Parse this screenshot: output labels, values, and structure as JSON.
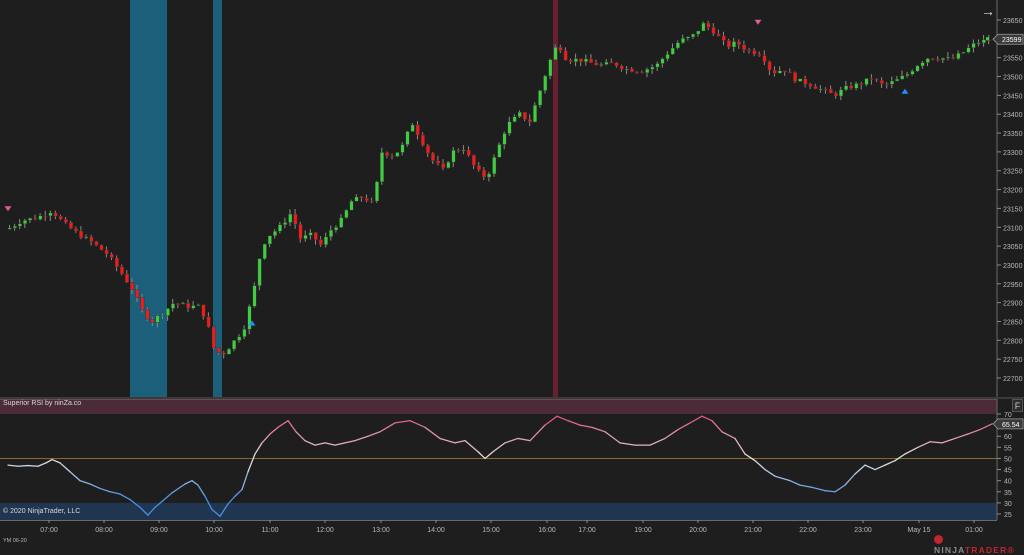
{
  "chart_data": [
    {
      "type": "candlestick",
      "title": "YM 06-20",
      "instrument": "YM 06-20",
      "ylim": [
        22660,
        23680
      ],
      "yticks": [
        23650,
        23600,
        23550,
        23500,
        23450,
        23400,
        23350,
        23300,
        23250,
        23200,
        23150,
        23100,
        23050,
        23000,
        22950,
        22900,
        22850,
        22800,
        22750,
        22700
      ],
      "last_price": 23599,
      "xticks": [
        "07:00",
        "08:00",
        "09:00",
        "10:00",
        "11:00",
        "12:00",
        "13:00",
        "14:00",
        "15:00",
        "16:00",
        "17:00",
        "18:00",
        "19:00",
        "20:00",
        "21:00",
        "22:00",
        "23:00",
        "May 15",
        "01:00"
      ],
      "close_path": [
        [
          6,
          23095
        ],
        [
          20,
          23118
        ],
        [
          35,
          23125
        ],
        [
          50,
          23145
        ],
        [
          62,
          23110
        ],
        [
          75,
          23085
        ],
        [
          90,
          23060
        ],
        [
          105,
          23030
        ],
        [
          118,
          22985
        ],
        [
          130,
          22940
        ],
        [
          140,
          22880
        ],
        [
          150,
          22850
        ],
        [
          160,
          22870
        ],
        [
          172,
          22900
        ],
        [
          185,
          22890
        ],
        [
          198,
          22890
        ],
        [
          205,
          22850
        ],
        [
          212,
          22780
        ],
        [
          220,
          22760
        ],
        [
          230,
          22790
        ],
        [
          242,
          22830
        ],
        [
          252,
          22930
        ],
        [
          260,
          23050
        ],
        [
          268,
          23080
        ],
        [
          278,
          23100
        ],
        [
          290,
          23140
        ],
        [
          298,
          23070
        ],
        [
          310,
          23080
        ],
        [
          320,
          23050
        ],
        [
          328,
          23090
        ],
        [
          340,
          23120
        ],
        [
          350,
          23170
        ],
        [
          362,
          23180
        ],
        [
          372,
          23160
        ],
        [
          380,
          23300
        ],
        [
          392,
          23290
        ],
        [
          402,
          23320
        ],
        [
          410,
          23380
        ],
        [
          420,
          23330
        ],
        [
          430,
          23280
        ],
        [
          442,
          23250
        ],
        [
          450,
          23300
        ],
        [
          462,
          23310
        ],
        [
          475,
          23250
        ],
        [
          485,
          23230
        ],
        [
          495,
          23300
        ],
        [
          505,
          23370
        ],
        [
          518,
          23400
        ],
        [
          528,
          23380
        ],
        [
          538,
          23460
        ],
        [
          548,
          23540
        ],
        [
          556,
          23590
        ],
        [
          565,
          23545
        ],
        [
          578,
          23545
        ],
        [
          590,
          23535
        ],
        [
          600,
          23530
        ],
        [
          612,
          23535
        ],
        [
          625,
          23520
        ],
        [
          640,
          23515
        ],
        [
          655,
          23530
        ],
        [
          665,
          23560
        ],
        [
          678,
          23595
        ],
        [
          690,
          23605
        ],
        [
          702,
          23640
        ],
        [
          712,
          23620
        ],
        [
          725,
          23580
        ],
        [
          735,
          23590
        ],
        [
          745,
          23570
        ],
        [
          760,
          23560
        ],
        [
          770,
          23510
        ],
        [
          782,
          23520
        ],
        [
          795,
          23490
        ],
        [
          808,
          23480
        ],
        [
          820,
          23465
        ],
        [
          832,
          23450
        ],
        [
          845,
          23470
        ],
        [
          858,
          23480
        ],
        [
          870,
          23495
        ],
        [
          882,
          23475
        ],
        [
          895,
          23490
        ],
        [
          905,
          23505
        ],
        [
          915,
          23530
        ],
        [
          925,
          23550
        ],
        [
          938,
          23550
        ],
        [
          950,
          23545
        ],
        [
          962,
          23565
        ],
        [
          975,
          23590
        ],
        [
          990,
          23599
        ]
      ],
      "markers": [
        {
          "type": "down-arrow",
          "color": "#e05aa0",
          "x": 8,
          "price": 23145
        },
        {
          "type": "up-arrow",
          "color": "#1e90ff",
          "x": 252,
          "price": 22850
        },
        {
          "type": "down-arrow",
          "color": "#e05aa0",
          "x": 758,
          "price": 23640
        },
        {
          "type": "up-arrow",
          "color": "#1e90ff",
          "x": 905,
          "price": 23465
        }
      ],
      "highlight_bands": [
        {
          "x0": 130,
          "x1": 167,
          "color": "#1c5f7a"
        },
        {
          "x0": 213,
          "x1": 222,
          "color": "#1c5f7a"
        },
        {
          "x0": 553,
          "x1": 558,
          "color": "#6b1e32"
        }
      ],
      "up_color": "#3ecf3e",
      "down_color": "#ee1c1c"
    },
    {
      "type": "line",
      "title": "Superior RSI by ninZa.co",
      "ylim": [
        22,
        72
      ],
      "yticks": [
        70,
        65,
        60,
        55,
        50,
        45,
        40,
        35,
        30,
        25
      ],
      "last_value": "65.54",
      "overbought_zone": [
        70,
        72
      ],
      "oversold_zone": [
        22,
        30
      ],
      "midline": 50,
      "series": [
        [
          8,
          47
        ],
        [
          18,
          46.5
        ],
        [
          28,
          46.8
        ],
        [
          38,
          46.5
        ],
        [
          46,
          48
        ],
        [
          52,
          49.5
        ],
        [
          60,
          48
        ],
        [
          70,
          44
        ],
        [
          80,
          40
        ],
        [
          90,
          38.5
        ],
        [
          100,
          36.5
        ],
        [
          110,
          35
        ],
        [
          120,
          34
        ],
        [
          130,
          31.5
        ],
        [
          140,
          28
        ],
        [
          148,
          24.5
        ],
        [
          155,
          28
        ],
        [
          163,
          31
        ],
        [
          172,
          34.5
        ],
        [
          185,
          38.5
        ],
        [
          192,
          40
        ],
        [
          198,
          38
        ],
        [
          205,
          33
        ],
        [
          212,
          27
        ],
        [
          220,
          24
        ],
        [
          228,
          29.5
        ],
        [
          235,
          33
        ],
        [
          242,
          36
        ],
        [
          248,
          44
        ],
        [
          255,
          52
        ],
        [
          262,
          57
        ],
        [
          270,
          61
        ],
        [
          278,
          64
        ],
        [
          288,
          67
        ],
        [
          296,
          62
        ],
        [
          305,
          58
        ],
        [
          315,
          56
        ],
        [
          325,
          57
        ],
        [
          335,
          56
        ],
        [
          345,
          57
        ],
        [
          355,
          58
        ],
        [
          368,
          60
        ],
        [
          380,
          62
        ],
        [
          395,
          66
        ],
        [
          410,
          67
        ],
        [
          425,
          64
        ],
        [
          440,
          59
        ],
        [
          455,
          57
        ],
        [
          465,
          58
        ],
        [
          478,
          53
        ],
        [
          485,
          50
        ],
        [
          493,
          53
        ],
        [
          505,
          57
        ],
        [
          518,
          59
        ],
        [
          530,
          58
        ],
        [
          545,
          65
        ],
        [
          557,
          69
        ],
        [
          568,
          67
        ],
        [
          580,
          65
        ],
        [
          592,
          64
        ],
        [
          605,
          62
        ],
        [
          620,
          57
        ],
        [
          635,
          56
        ],
        [
          650,
          56
        ],
        [
          665,
          59
        ],
        [
          678,
          63
        ],
        [
          690,
          66
        ],
        [
          702,
          69
        ],
        [
          712,
          67
        ],
        [
          722,
          62
        ],
        [
          735,
          59
        ],
        [
          745,
          52
        ],
        [
          755,
          49
        ],
        [
          765,
          45
        ],
        [
          775,
          42
        ],
        [
          790,
          40
        ],
        [
          800,
          38
        ],
        [
          812,
          37
        ],
        [
          825,
          35.5
        ],
        [
          835,
          35
        ],
        [
          845,
          38
        ],
        [
          855,
          43
        ],
        [
          865,
          47
        ],
        [
          875,
          45
        ],
        [
          885,
          47
        ],
        [
          895,
          49
        ],
        [
          905,
          52
        ],
        [
          918,
          55
        ],
        [
          930,
          57.5
        ],
        [
          942,
          57
        ],
        [
          955,
          59
        ],
        [
          968,
          61
        ],
        [
          980,
          63
        ],
        [
          992,
          65.54
        ]
      ]
    }
  ],
  "price_axis": {
    "labels": [
      "23650",
      "23600",
      "23550",
      "23500",
      "23450",
      "23400",
      "23350",
      "23300",
      "23250",
      "23200",
      "23150",
      "23100",
      "23050",
      "23000",
      "22950",
      "22900",
      "22850",
      "22800",
      "22750",
      "22700"
    ],
    "current_price_badge": "23599"
  },
  "indicator_axis": {
    "labels": [
      "70",
      "65",
      "60",
      "55",
      "50",
      "45",
      "40",
      "35",
      "30",
      "25"
    ],
    "current_value_badge": "65.54"
  },
  "time_axis": {
    "labels": [
      "07:00",
      "08:00",
      "09:00",
      "10:00",
      "11:00",
      "12:00",
      "13:00",
      "14:00",
      "15:00",
      "16:00",
      "17:00",
      "18:00",
      "19:00",
      "20:00",
      "21:00",
      "22:00",
      "23:00",
      "May 15",
      "01:00"
    ]
  },
  "panel": {
    "indicator_title": "Superior RSI by ninZa.co",
    "copyright": "© 2020 NinjaTrader, LLC",
    "instrument": "YM 06-20",
    "f_button_label": "F",
    "nav_arrow": "→",
    "logo_ninja": "NINJA",
    "logo_trader": "TRADER",
    "logo_reg": "®"
  },
  "colors": {
    "background": "#1e1e1e",
    "candle_up": "#3ecf3e",
    "candle_down": "#ee1c1c",
    "oversold_band": "#1c5f7a",
    "overbought_highlight": "#6b1e32",
    "rsi_overbought_zone": "#4b2a3a",
    "rsi_oversold_zone": "#1f3550",
    "midline": "#8a6a2a",
    "rsi_high": "#e05a7a",
    "rsi_low": "#4a90e2"
  }
}
